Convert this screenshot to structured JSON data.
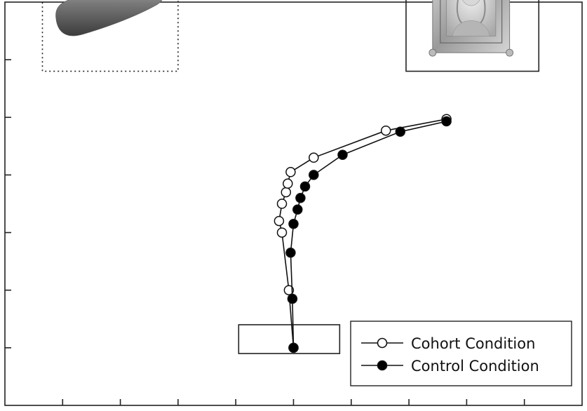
{
  "chart_data": {
    "type": "line",
    "title": "",
    "xlabel": "",
    "ylabel": "",
    "xlim": [
      0,
      10
    ],
    "ylim": [
      0,
      7
    ],
    "xticks": [
      1,
      2,
      3,
      4,
      5,
      6,
      7,
      8,
      9
    ],
    "yticks": [
      1,
      2,
      3,
      4,
      5,
      6
    ],
    "grid": false,
    "legend_position": "bottom-right",
    "colors": {
      "axis": "#222222",
      "line": "#111111",
      "open_marker_fill": "#ffffff",
      "filled_marker_fill": "#000000"
    },
    "series": [
      {
        "name": "Cohort Condition",
        "marker": "open-circle",
        "points": [
          [
            5.0,
            1.0
          ],
          [
            4.92,
            2.0
          ],
          [
            4.8,
            3.0
          ],
          [
            4.75,
            3.2
          ],
          [
            4.8,
            3.5
          ],
          [
            4.87,
            3.7
          ],
          [
            4.9,
            3.85
          ],
          [
            4.95,
            4.05
          ],
          [
            5.35,
            4.3
          ],
          [
            6.6,
            4.77
          ],
          [
            7.65,
            4.97
          ]
        ]
      },
      {
        "name": "Control Condition",
        "marker": "filled-circle",
        "points": [
          [
            5.0,
            1.0
          ],
          [
            4.98,
            1.85
          ],
          [
            4.95,
            2.65
          ],
          [
            5.0,
            3.15
          ],
          [
            5.07,
            3.4
          ],
          [
            5.12,
            3.6
          ],
          [
            5.2,
            3.8
          ],
          [
            5.35,
            4.0
          ],
          [
            5.85,
            4.35
          ],
          [
            6.85,
            4.75
          ],
          [
            7.65,
            4.93
          ]
        ]
      }
    ],
    "annotations": [
      {
        "kind": "picture",
        "label": "cucumber-picture",
        "frame": "dotted",
        "x_range": [
          0.65,
          3.0
        ],
        "y_range": [
          5.8,
          8.1
        ]
      },
      {
        "kind": "picture",
        "label": "picture-frame-target",
        "frame": "solid",
        "x_range": [
          6.95,
          9.25
        ],
        "y_range": [
          5.8,
          8.1
        ]
      },
      {
        "kind": "box",
        "label": "start-box",
        "frame": "solid",
        "x_range": [
          4.05,
          5.8
        ],
        "y_range": [
          0.9,
          1.4
        ]
      }
    ]
  }
}
